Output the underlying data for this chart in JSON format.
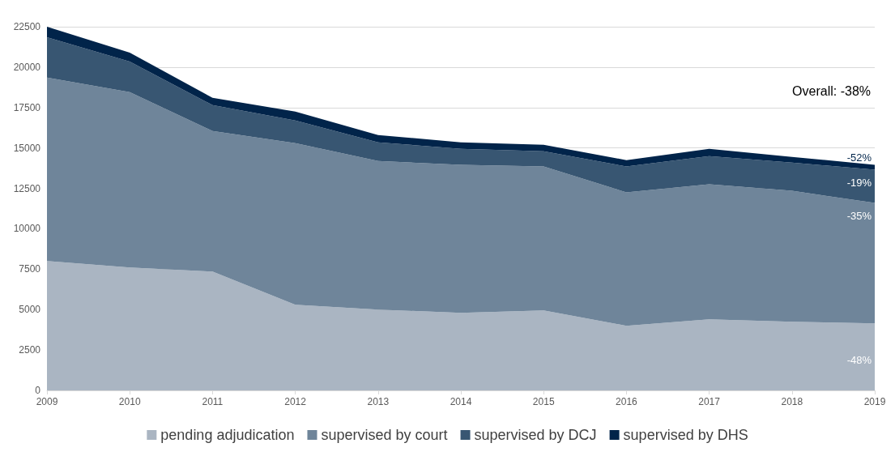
{
  "chart_data": {
    "type": "area",
    "stacked": true,
    "categories": [
      "2009",
      "2010",
      "2011",
      "2012",
      "2013",
      "2014",
      "2015",
      "2016",
      "2017",
      "2018",
      "2019"
    ],
    "series": [
      {
        "name": "pending adjudication",
        "color": "#aab5c2",
        "values": [
          8000,
          7600,
          7350,
          5300,
          5000,
          4800,
          4950,
          4000,
          4400,
          4250,
          4150
        ]
      },
      {
        "name": "supervised by court",
        "color": "#6f859a",
        "values": [
          11350,
          10850,
          8700,
          10000,
          9200,
          9150,
          8900,
          8250,
          8350,
          8100,
          7450
        ]
      },
      {
        "name": "supervised by DCJ",
        "color": "#385672",
        "values": [
          2500,
          1900,
          1600,
          1400,
          1150,
          1000,
          950,
          1600,
          1750,
          1750,
          2050
        ]
      },
      {
        "name": "supervised by DHS",
        "color": "#01244a",
        "values": [
          650,
          550,
          450,
          550,
          450,
          400,
          400,
          400,
          450,
          350,
          300
        ]
      }
    ],
    "ylim": [
      0,
      22500
    ],
    "yticks": [
      0,
      2500,
      5000,
      7500,
      10000,
      12500,
      15000,
      17500,
      20000,
      22500
    ],
    "grid": "y",
    "legend": "bottom",
    "annotations": [
      "Overall: -38%",
      "-52%",
      "-19%",
      "-35%",
      "-48%"
    ]
  }
}
